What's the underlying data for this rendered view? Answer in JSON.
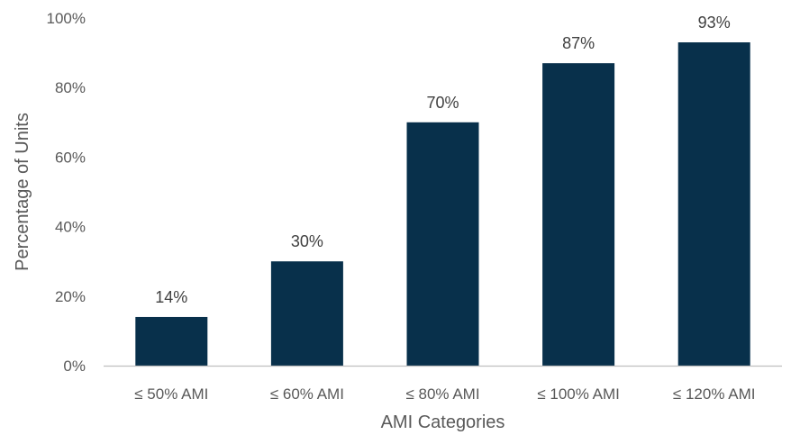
{
  "chart_data": {
    "type": "bar",
    "title": "",
    "xlabel": "AMI Categories",
    "ylabel": "Percentage of Units",
    "categories": [
      "≤ 50% AMI",
      "≤ 60% AMI",
      "≤ 80% AMI",
      "≤ 100% AMI",
      "≤ 120% AMI"
    ],
    "values": [
      14,
      30,
      70,
      87,
      93
    ],
    "data_labels": [
      "14%",
      "30%",
      "70%",
      "87%",
      "93%"
    ],
    "ylim": [
      0,
      100
    ],
    "yticks": [
      0,
      20,
      40,
      60,
      80,
      100
    ],
    "ytick_labels": [
      "0%",
      "20%",
      "40%",
      "60%",
      "80%",
      "100%"
    ],
    "grid": false,
    "legend": "none",
    "colors": {
      "bar": "#08304b",
      "axis": "#bfbfbf"
    }
  }
}
